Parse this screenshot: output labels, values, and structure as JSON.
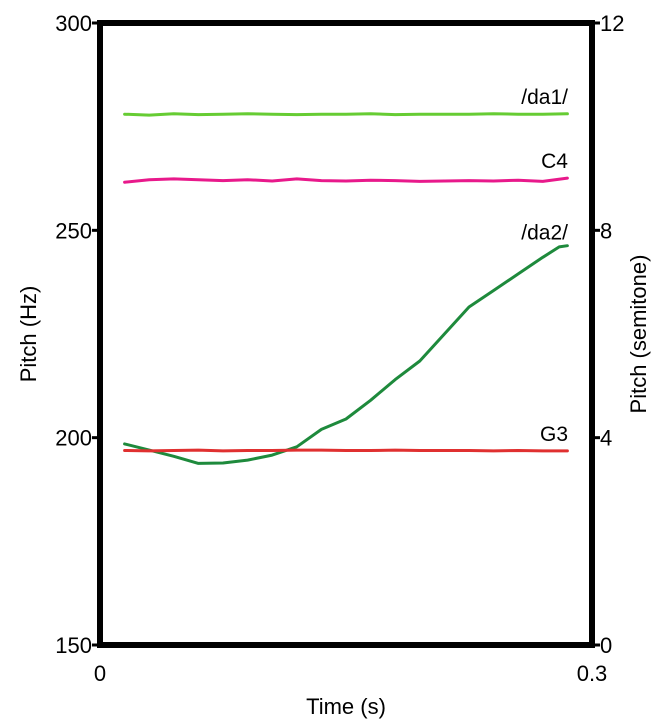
{
  "chart_data": {
    "type": "line",
    "xlabel": "Time (s)",
    "ylabel_left": "Pitch (Hz)",
    "ylabel_right": "Pitch (semitone)",
    "xlim": [
      0,
      0.3
    ],
    "ylim_left": [
      150,
      300
    ],
    "ylim_right": [
      0,
      12
    ],
    "x_ticks": [
      "0",
      "0.3"
    ],
    "y_ticks_left": [
      "300",
      "250",
      "200",
      "150"
    ],
    "y_ticks_right": [
      "12",
      "8",
      "4",
      "0"
    ],
    "grid": false,
    "series": [
      {
        "name": "/da1/",
        "color": "#66cc33",
        "x": [
          0.015,
          0.03,
          0.045,
          0.06,
          0.075,
          0.09,
          0.105,
          0.12,
          0.135,
          0.15,
          0.165,
          0.18,
          0.195,
          0.21,
          0.225,
          0.24,
          0.255,
          0.27,
          0.285
        ],
        "values": [
          278.0,
          277.8,
          278.1,
          277.9,
          278.0,
          278.1,
          278.0,
          277.9,
          278.0,
          278.0,
          278.1,
          277.9,
          278.0,
          278.0,
          278.0,
          278.1,
          278.0,
          278.0,
          278.1
        ]
      },
      {
        "name": "C4",
        "color": "#e8198b",
        "x": [
          0.015,
          0.03,
          0.045,
          0.06,
          0.075,
          0.09,
          0.105,
          0.12,
          0.135,
          0.15,
          0.165,
          0.18,
          0.195,
          0.21,
          0.225,
          0.24,
          0.255,
          0.27,
          0.285
        ],
        "values": [
          261.6,
          262.2,
          262.4,
          262.2,
          262.0,
          262.2,
          261.9,
          262.4,
          262.0,
          261.9,
          262.1,
          262.0,
          261.8,
          261.9,
          262.0,
          261.9,
          262.1,
          261.8,
          262.6
        ]
      },
      {
        "name": "/da2/",
        "color": "#1e8a3c",
        "x": [
          0.015,
          0.03,
          0.045,
          0.06,
          0.075,
          0.09,
          0.105,
          0.12,
          0.135,
          0.15,
          0.165,
          0.18,
          0.195,
          0.21,
          0.225,
          0.24,
          0.255,
          0.27,
          0.28,
          0.285
        ],
        "values": [
          198.5,
          197.0,
          195.5,
          193.8,
          193.9,
          194.6,
          195.8,
          197.8,
          202.0,
          204.5,
          209.0,
          214.0,
          218.5,
          225.0,
          231.5,
          235.5,
          239.5,
          243.5,
          246.0,
          246.3
        ]
      },
      {
        "name": "G3",
        "color": "#e03030",
        "x": [
          0.015,
          0.03,
          0.045,
          0.06,
          0.075,
          0.09,
          0.105,
          0.12,
          0.135,
          0.15,
          0.165,
          0.18,
          0.195,
          0.21,
          0.225,
          0.24,
          0.255,
          0.27,
          0.285
        ],
        "values": [
          196.9,
          196.8,
          196.9,
          197.0,
          196.8,
          196.9,
          196.9,
          197.0,
          197.0,
          196.9,
          196.9,
          197.0,
          196.9,
          196.9,
          196.9,
          196.8,
          196.9,
          196.8,
          196.8
        ]
      }
    ]
  }
}
